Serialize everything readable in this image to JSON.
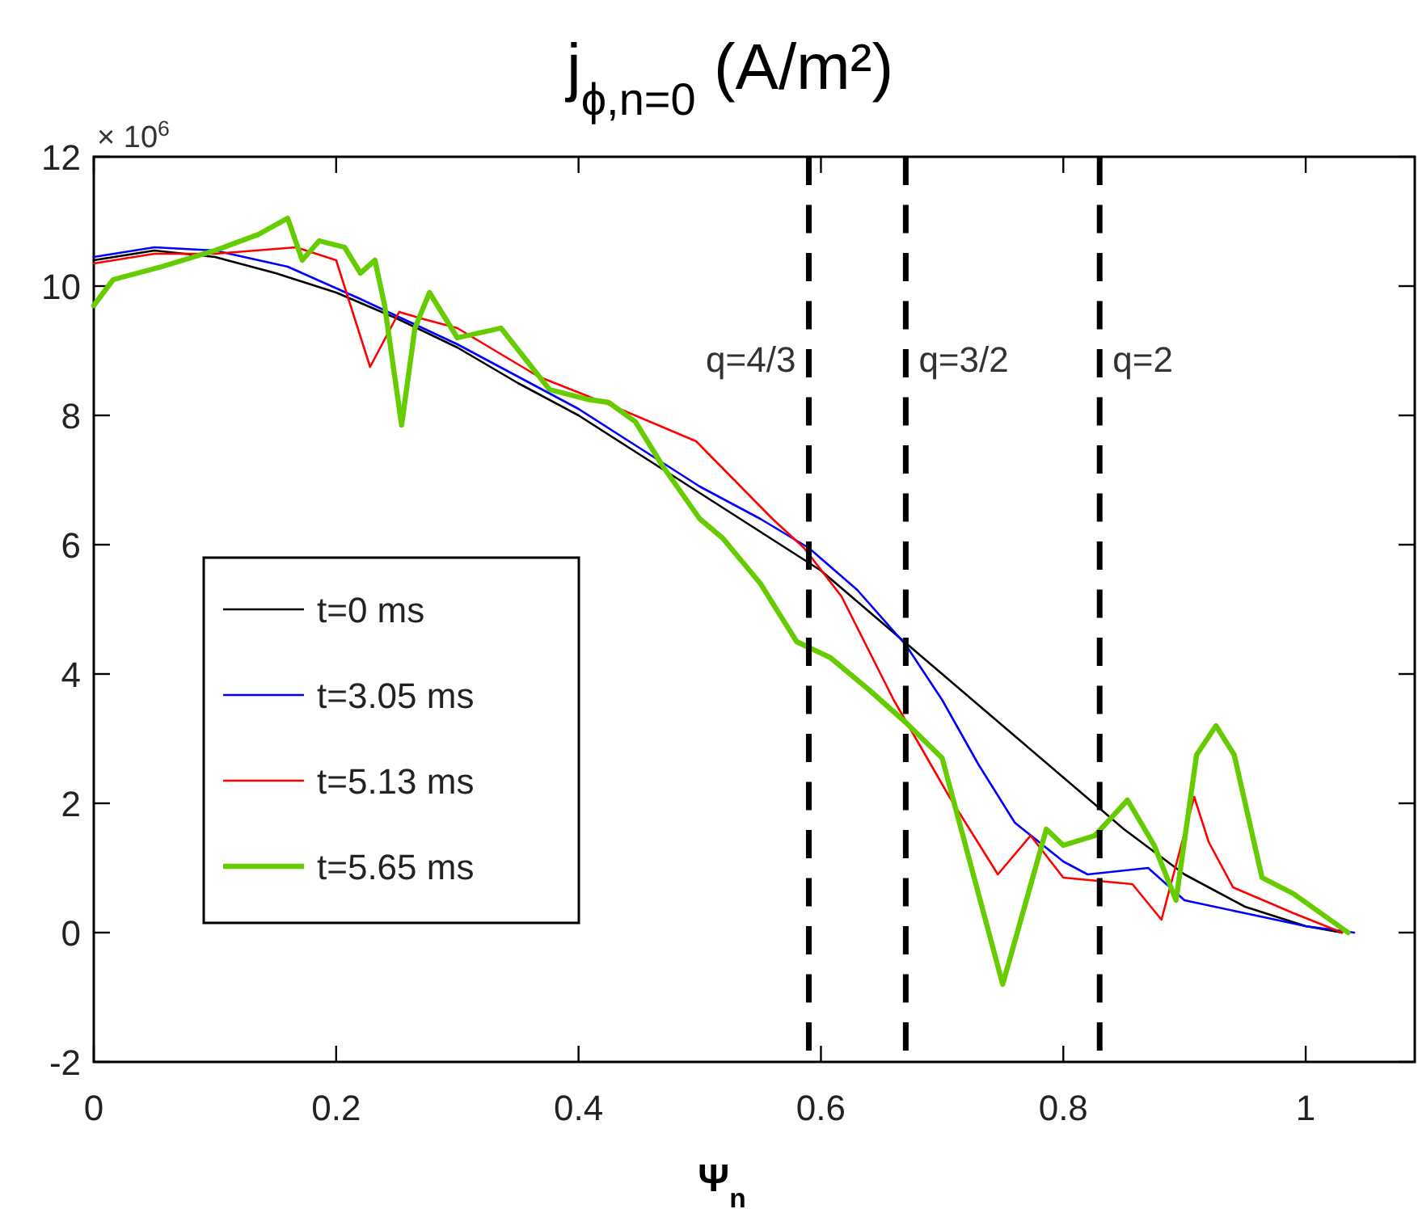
{
  "chart_data": {
    "type": "line",
    "title": "j$_{ϕ,n=0}$ (A/m²)",
    "xlabel": "Ψ$_{n}$",
    "annotations": [
      "× 10$^{6}$",
      "q=4/3",
      "q=3/2",
      "q=2"
    ],
    "xlim": [
      0,
      1.09
    ],
    "xticks": [
      0,
      0.2,
      0.4,
      0.6,
      0.8,
      1
    ],
    "ylim": [
      -2,
      12
    ],
    "yticks": [
      -2,
      0,
      2,
      4,
      6,
      8,
      10,
      12
    ],
    "grid": false,
    "legend": "left",
    "marker": "none",
    "line_style": "solid",
    "ref_lines": [
      {
        "axis": "x",
        "value": 0.59,
        "line_style": "dashed",
        "color": "#000000"
      },
      {
        "axis": "x",
        "value": 0.67,
        "line_style": "dashed",
        "color": "#000000"
      },
      {
        "axis": "x",
        "value": 0.83,
        "line_style": "dashed",
        "color": "#000000"
      }
    ],
    "series": [
      {
        "name": "t=0 ms",
        "color": "#000000",
        "x": [
          0,
          0.05,
          0.1,
          0.15,
          0.2,
          0.25,
          0.3,
          0.35,
          0.4,
          0.45,
          0.5,
          0.55,
          0.6,
          0.65,
          0.7,
          0.75,
          0.8,
          0.85,
          0.9,
          0.95,
          1.0,
          1.03
        ],
        "values": [
          10.4,
          10.55,
          10.45,
          10.2,
          9.9,
          9.5,
          9.05,
          8.5,
          8.0,
          7.4,
          6.8,
          6.2,
          5.6,
          4.8,
          4.0,
          3.2,
          2.4,
          1.6,
          0.9,
          0.4,
          0.1,
          0
        ]
      },
      {
        "name": "t=3.05 ms",
        "color": "#0000ff",
        "x": [
          0,
          0.05,
          0.1,
          0.16,
          0.22,
          0.3,
          0.4,
          0.45,
          0.5,
          0.55,
          0.59,
          0.63,
          0.67,
          0.7,
          0.73,
          0.76,
          0.8,
          0.82,
          0.87,
          0.9,
          0.95,
          1.0,
          1.04
        ],
        "values": [
          10.45,
          10.6,
          10.55,
          10.3,
          9.8,
          9.1,
          8.1,
          7.5,
          6.9,
          6.4,
          5.95,
          5.3,
          4.45,
          3.6,
          2.6,
          1.7,
          1.1,
          0.9,
          1.0,
          0.5,
          0.3,
          0.1,
          0
        ]
      },
      {
        "name": "t=5.13 ms",
        "color": "#ff0000",
        "x": [
          0,
          0.05,
          0.1,
          0.167,
          0.2,
          0.228,
          0.252,
          0.27,
          0.3,
          0.367,
          0.434,
          0.497,
          0.56,
          0.586,
          0.617,
          0.66,
          0.706,
          0.746,
          0.773,
          0.8,
          0.857,
          0.881,
          0.908,
          0.92,
          0.94,
          0.99,
          1.03
        ],
        "values": [
          10.35,
          10.5,
          10.5,
          10.6,
          10.4,
          8.75,
          9.6,
          9.5,
          9.35,
          8.6,
          8.1,
          7.6,
          6.4,
          5.95,
          5.2,
          3.6,
          2.1,
          0.9,
          1.5,
          0.85,
          0.75,
          0.2,
          2.1,
          1.4,
          0.7,
          0.3,
          0
        ]
      },
      {
        "name": "t=5.65 ms",
        "color": "#66cc00",
        "x": [
          0,
          0.016,
          0.056,
          0.1,
          0.136,
          0.16,
          0.172,
          0.186,
          0.207,
          0.22,
          0.232,
          0.24,
          0.254,
          0.265,
          0.277,
          0.3,
          0.336,
          0.376,
          0.407,
          0.425,
          0.447,
          0.47,
          0.5,
          0.519,
          0.55,
          0.58,
          0.608,
          0.64,
          0.67,
          0.7,
          0.75,
          0.786,
          0.8,
          0.826,
          0.853,
          0.875,
          0.893,
          0.91,
          0.926,
          0.941,
          0.964,
          0.99,
          1.035
        ],
        "values": [
          9.7,
          10.1,
          10.3,
          10.55,
          10.8,
          11.05,
          10.4,
          10.7,
          10.6,
          10.2,
          10.4,
          9.7,
          7.85,
          9.35,
          9.9,
          9.2,
          9.35,
          8.4,
          8.25,
          8.2,
          7.9,
          7.2,
          6.4,
          6.1,
          5.4,
          4.5,
          4.25,
          3.75,
          3.25,
          2.7,
          -0.8,
          1.6,
          1.35,
          1.5,
          2.05,
          1.35,
          0.5,
          2.75,
          3.2,
          2.75,
          0.85,
          0.6,
          0
        ]
      }
    ]
  }
}
